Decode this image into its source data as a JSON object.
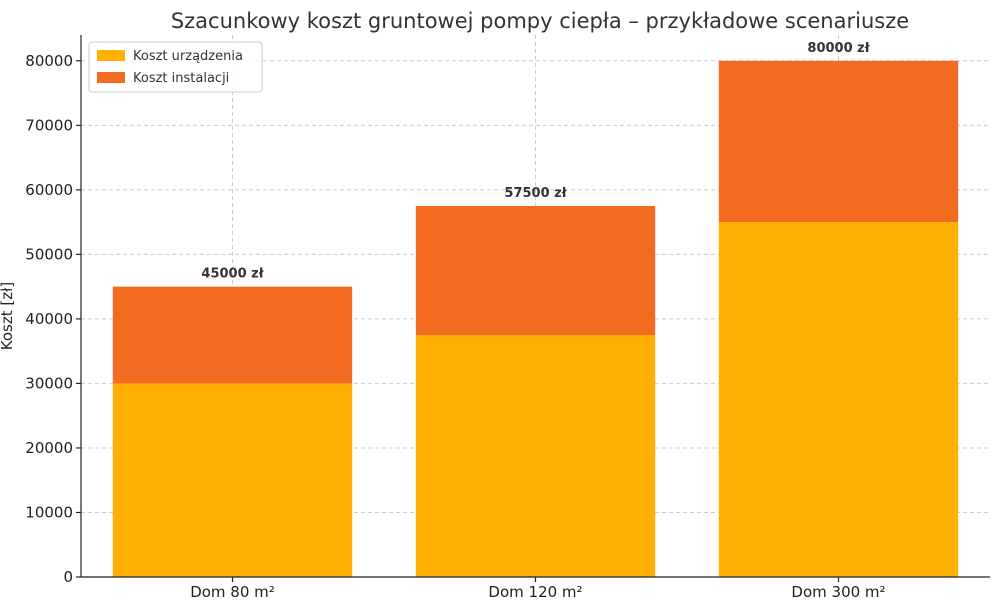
{
  "chart_data": {
    "type": "bar",
    "stacked": true,
    "title": "Szacunkowy koszt gruntowej pompy ciepła – przykładowe scenariusze",
    "xlabel": "",
    "ylabel": "Koszt [zł]",
    "ylim": [
      0,
      84000
    ],
    "yticks": [
      0,
      10000,
      20000,
      30000,
      40000,
      50000,
      60000,
      70000,
      80000
    ],
    "grid": true,
    "legend_position": "top-left",
    "categories": [
      "Dom 80 m²",
      "Dom 120 m²",
      "Dom 300 m²"
    ],
    "series": [
      {
        "name": "Koszt urządzenia",
        "values": [
          30000,
          37500,
          55000
        ],
        "color": "#FFB000"
      },
      {
        "name": "Koszt instalacji",
        "values": [
          15000,
          20000,
          25000
        ],
        "color": "#F26B21"
      }
    ],
    "totals": [
      "45000 zł",
      "57500 zł",
      "80000 zł"
    ]
  }
}
